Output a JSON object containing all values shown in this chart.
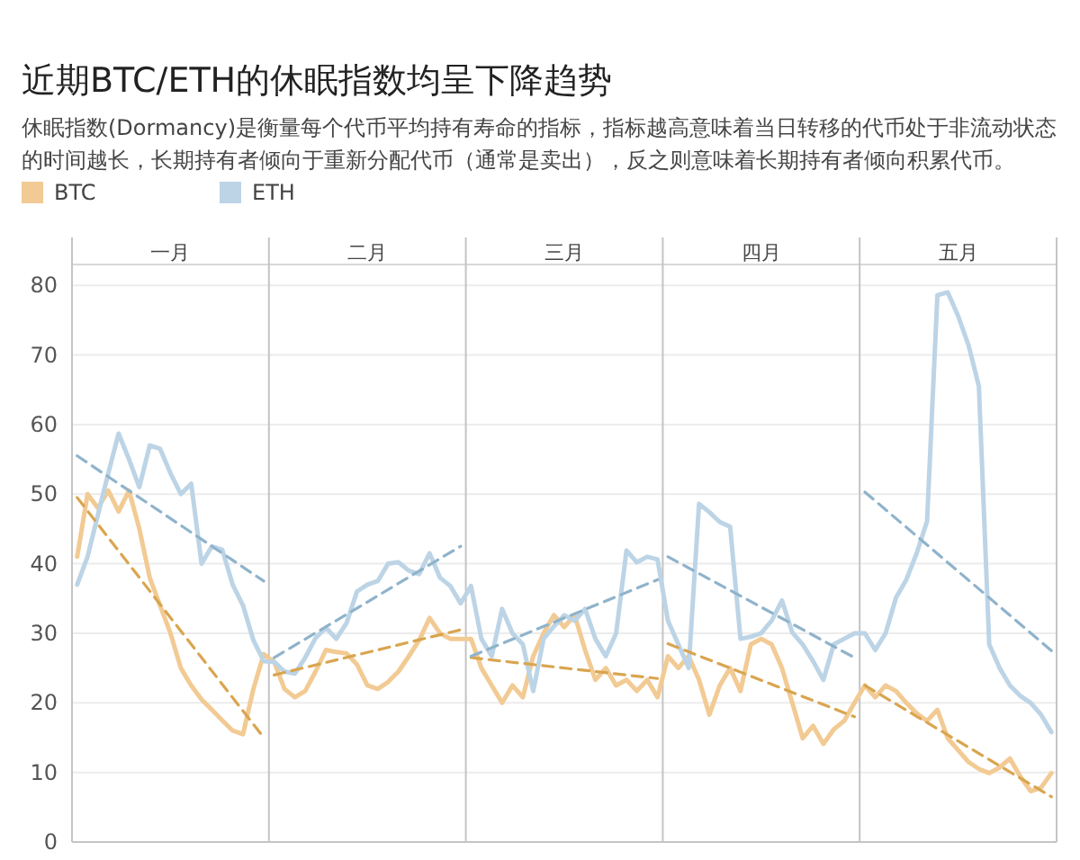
{
  "chart_data": [
    {
      "type": "other",
      "title": "近期BTC/ETH的休眠指数均呈下降趋势",
      "subtitle": "休眠指数(Dormancy)是衡量每个代币平均持有寿命的指标，指标越高意味着当日转移的代币处于非流动状态的时间越长，长期持有者倾向于重新分配代币（通常是卖出），反之则意味着长期持有者倾向积累代币。"
    },
    {
      "type": "line",
      "legend": "top left",
      "grid": "y",
      "ylim": [
        0,
        83
      ],
      "yticks": [
        0,
        10,
        20,
        30,
        40,
        50,
        60,
        70,
        80
      ],
      "annotations": [
        "一月",
        "二月",
        "三月",
        "四月",
        "五月"
      ],
      "categories": [
        null,
        null,
        null,
        null,
        null,
        null,
        null,
        null,
        null,
        null,
        null,
        null,
        null,
        null,
        null,
        null,
        null,
        null,
        null,
        null,
        null,
        null,
        null,
        null,
        null,
        null,
        null,
        null,
        null,
        null,
        null,
        null,
        null,
        null,
        null,
        null,
        null,
        null,
        null,
        null,
        null,
        null,
        null,
        null,
        null,
        null,
        null,
        null,
        null,
        null,
        null,
        null,
        null,
        null,
        null,
        null,
        null,
        null,
        null,
        null,
        null,
        null,
        null,
        null,
        null,
        null,
        null,
        null,
        null,
        null,
        null,
        null,
        null,
        null,
        null,
        null,
        null,
        null,
        null,
        null,
        null,
        null,
        null,
        null,
        null,
        null,
        null,
        null,
        null,
        null,
        null,
        null,
        null,
        null,
        null
      ],
      "series": [
        {
          "name": "BTC",
          "color": "#f2ca93",
          "values": [
            41,
            50,
            48,
            50.5,
            47.5,
            50.5,
            45,
            38,
            34,
            30,
            25,
            22.5,
            20.5,
            19,
            17.5,
            16,
            15.5,
            22,
            27,
            25.9,
            22,
            20.8,
            21.7,
            24.5,
            27.6,
            27.3,
            27.1,
            25.5,
            22.5,
            22,
            23,
            24.5,
            26.7,
            29,
            32.2,
            30,
            29.2,
            29.2,
            29.2,
            25,
            22.5,
            20,
            22.5,
            20.8,
            26.7,
            30,
            32.6,
            30.9,
            32.6,
            27.6,
            23.3,
            25,
            22.5,
            23.3,
            21.7,
            23.3,
            20.8,
            26.7,
            25,
            26.7,
            23.3,
            18.3,
            22.5,
            25,
            21.7,
            28.4,
            29.2,
            28.4,
            25,
            20,
            14.9,
            16.7,
            14.1,
            16.2,
            17.4,
            20,
            22.5,
            20.8,
            22.5,
            21.7,
            20,
            18.5,
            17.4,
            19,
            14.9,
            13.2,
            11.5,
            10.5,
            9.9,
            10.7,
            12,
            9.4,
            7.3,
            7.8,
            9.9
          ]
        },
        {
          "name": "ETH",
          "color": "#bcd4e6",
          "values": [
            37,
            41,
            47,
            53,
            58.7,
            55,
            51,
            57,
            56.5,
            53,
            50,
            51.5,
            40,
            42.5,
            42,
            37,
            34,
            29,
            26,
            25.9,
            24.5,
            24.2,
            26.5,
            29.3,
            30.8,
            29.2,
            31.5,
            36,
            37,
            37.5,
            40,
            40.2,
            39,
            38.5,
            41.5,
            38,
            36.8,
            34.3,
            36.8,
            29.2,
            26.7,
            33.5,
            30,
            28.4,
            21.7,
            29.2,
            31,
            32.6,
            31.8,
            33.5,
            29.2,
            26.7,
            30,
            41.9,
            40.2,
            41,
            40.6,
            31.8,
            28.4,
            25,
            48.6,
            47.4,
            46,
            45.3,
            29.2,
            29.5,
            30,
            31.8,
            34.7,
            30.1,
            28.4,
            26,
            23.3,
            28.4,
            29.2,
            30,
            30,
            27.6,
            30,
            35.1,
            37.7,
            41.5,
            46.1,
            78.6,
            79,
            75.6,
            71.4,
            65.5,
            28.4,
            25,
            22.5,
            21,
            20,
            18.3,
            15.8
          ]
        },
        {
          "color": "#d9a54f",
          "line_style": "dashed",
          "values": [
            49.5,
            null,
            null,
            null,
            null,
            null,
            null,
            null,
            null,
            null,
            null,
            null,
            null,
            null,
            null,
            null,
            null,
            null,
            15,
            null,
            null,
            null,
            null,
            null,
            null,
            null,
            null,
            null,
            null,
            null,
            null,
            null,
            null,
            null,
            null,
            null,
            null,
            null,
            null,
            null,
            null,
            null,
            null,
            null,
            null,
            null,
            null,
            null,
            null,
            null,
            null,
            null,
            null,
            null,
            null,
            null,
            null,
            null,
            null,
            null,
            null,
            null,
            null,
            null,
            null,
            null,
            null,
            null,
            null,
            null,
            null,
            null,
            null,
            null,
            null,
            null,
            null,
            null,
            null,
            null,
            null,
            null,
            null,
            null,
            null,
            null,
            null,
            null,
            null,
            null,
            null,
            null,
            null,
            null,
            null
          ]
        },
        {
          "color": "#8fb3cb",
          "line_style": "dashed",
          "values": [
            55.5,
            null,
            null,
            null,
            null,
            null,
            null,
            null,
            null,
            null,
            null,
            null,
            null,
            null,
            null,
            null,
            null,
            null,
            37.5,
            null,
            null,
            null,
            null,
            null,
            null,
            null,
            null,
            null,
            null,
            null,
            null,
            null,
            null,
            null,
            null,
            null,
            null,
            null,
            null,
            null,
            null,
            null,
            null,
            null,
            null,
            null,
            null,
            null,
            null,
            null,
            null,
            null,
            null,
            null,
            null,
            null,
            null,
            null,
            null,
            null,
            null,
            null,
            null,
            null,
            null,
            null,
            null,
            null,
            null,
            null,
            null,
            null,
            null,
            null,
            null,
            null,
            null,
            null,
            null,
            null,
            null,
            null,
            null,
            null,
            null,
            null,
            null,
            null,
            null,
            null,
            null,
            null,
            null,
            null,
            null
          ]
        },
        {
          "color": "#d9a54f",
          "line_style": "dashed",
          "values": [
            null,
            null,
            null,
            null,
            null,
            null,
            null,
            null,
            null,
            null,
            null,
            null,
            null,
            null,
            null,
            null,
            null,
            null,
            null,
            24,
            null,
            null,
            null,
            null,
            null,
            null,
            null,
            null,
            null,
            null,
            null,
            null,
            null,
            null,
            null,
            null,
            null,
            30.5,
            null,
            null,
            null,
            null,
            null,
            null,
            null,
            null,
            null,
            null,
            null,
            null,
            null,
            null,
            null,
            null,
            null,
            null,
            null,
            null,
            null,
            null,
            null,
            null,
            null,
            null,
            null,
            null,
            null,
            null,
            null,
            null,
            null,
            null,
            null,
            null,
            null,
            null,
            null,
            null,
            null,
            null,
            null,
            null,
            null,
            null,
            null,
            null,
            null,
            null,
            null,
            null,
            null,
            null,
            null,
            null,
            null
          ]
        },
        {
          "color": "#8fb3cb",
          "line_style": "dashed",
          "values": [
            null,
            null,
            null,
            null,
            null,
            null,
            null,
            null,
            null,
            null,
            null,
            null,
            null,
            null,
            null,
            null,
            null,
            null,
            null,
            26.5,
            null,
            null,
            null,
            null,
            null,
            null,
            null,
            null,
            null,
            null,
            null,
            null,
            null,
            null,
            null,
            null,
            null,
            42.5,
            null,
            null,
            null,
            null,
            null,
            null,
            null,
            null,
            null,
            null,
            null,
            null,
            null,
            null,
            null,
            null,
            null,
            null,
            null,
            null,
            null,
            null,
            null,
            null,
            null,
            null,
            null,
            null,
            null,
            null,
            null,
            null,
            null,
            null,
            null,
            null,
            null,
            null,
            null,
            null,
            null,
            null,
            null,
            null,
            null,
            null,
            null,
            null,
            null,
            null,
            null,
            null,
            null,
            null,
            null,
            null,
            null
          ]
        },
        {
          "color": "#d9a54f",
          "line_style": "dashed",
          "values": [
            null,
            null,
            null,
            null,
            null,
            null,
            null,
            null,
            null,
            null,
            null,
            null,
            null,
            null,
            null,
            null,
            null,
            null,
            null,
            null,
            null,
            null,
            null,
            null,
            null,
            null,
            null,
            null,
            null,
            null,
            null,
            null,
            null,
            null,
            null,
            null,
            null,
            null,
            26.5,
            null,
            null,
            null,
            null,
            null,
            null,
            null,
            null,
            null,
            null,
            null,
            null,
            null,
            null,
            null,
            null,
            null,
            23.5,
            null,
            null,
            null,
            null,
            null,
            null,
            null,
            null,
            null,
            null,
            null,
            null,
            null,
            null,
            null,
            null,
            null,
            null,
            null,
            null,
            null,
            null,
            null,
            null,
            null,
            null,
            null,
            null,
            null,
            null,
            null,
            null,
            null,
            null,
            null,
            null,
            null,
            null
          ]
        },
        {
          "color": "#8fb3cb",
          "line_style": "dashed",
          "values": [
            null,
            null,
            null,
            null,
            null,
            null,
            null,
            null,
            null,
            null,
            null,
            null,
            null,
            null,
            null,
            null,
            null,
            null,
            null,
            null,
            null,
            null,
            null,
            null,
            null,
            null,
            null,
            null,
            null,
            null,
            null,
            null,
            null,
            null,
            null,
            null,
            null,
            null,
            26.7,
            null,
            null,
            null,
            null,
            null,
            null,
            null,
            null,
            null,
            null,
            null,
            null,
            null,
            null,
            null,
            null,
            null,
            37.7,
            null,
            null,
            null,
            null,
            null,
            null,
            null,
            null,
            null,
            null,
            null,
            null,
            null,
            null,
            null,
            null,
            null,
            null,
            null,
            null,
            null,
            null,
            null,
            null,
            null,
            null,
            null,
            null,
            null,
            null,
            null,
            null,
            null,
            null,
            null,
            null,
            null,
            null
          ]
        },
        {
          "color": "#d9a54f",
          "line_style": "dashed",
          "values": [
            null,
            null,
            null,
            null,
            null,
            null,
            null,
            null,
            null,
            null,
            null,
            null,
            null,
            null,
            null,
            null,
            null,
            null,
            null,
            null,
            null,
            null,
            null,
            null,
            null,
            null,
            null,
            null,
            null,
            null,
            null,
            null,
            null,
            null,
            null,
            null,
            null,
            null,
            null,
            null,
            null,
            null,
            null,
            null,
            null,
            null,
            null,
            null,
            null,
            null,
            null,
            null,
            null,
            null,
            null,
            null,
            null,
            28.5,
            null,
            null,
            null,
            null,
            null,
            null,
            null,
            null,
            null,
            null,
            null,
            null,
            null,
            null,
            null,
            null,
            null,
            18,
            null,
            null,
            null,
            null,
            null,
            null,
            null,
            null,
            null,
            null,
            null,
            null,
            null,
            null,
            null,
            null,
            null,
            null,
            null
          ]
        },
        {
          "color": "#8fb3cb",
          "line_style": "dashed",
          "values": [
            null,
            null,
            null,
            null,
            null,
            null,
            null,
            null,
            null,
            null,
            null,
            null,
            null,
            null,
            null,
            null,
            null,
            null,
            null,
            null,
            null,
            null,
            null,
            null,
            null,
            null,
            null,
            null,
            null,
            null,
            null,
            null,
            null,
            null,
            null,
            null,
            null,
            null,
            null,
            null,
            null,
            null,
            null,
            null,
            null,
            null,
            null,
            null,
            null,
            null,
            null,
            null,
            null,
            null,
            null,
            null,
            null,
            41,
            null,
            null,
            null,
            null,
            null,
            null,
            null,
            null,
            null,
            null,
            null,
            null,
            null,
            null,
            null,
            null,
            null,
            26.5,
            null,
            null,
            null,
            null,
            null,
            null,
            null,
            null,
            null,
            null,
            null,
            null,
            null,
            null,
            null,
            null,
            null,
            null,
            null
          ]
        },
        {
          "color": "#d9a54f",
          "line_style": "dashed",
          "values": [
            null,
            null,
            null,
            null,
            null,
            null,
            null,
            null,
            null,
            null,
            null,
            null,
            null,
            null,
            null,
            null,
            null,
            null,
            null,
            null,
            null,
            null,
            null,
            null,
            null,
            null,
            null,
            null,
            null,
            null,
            null,
            null,
            null,
            null,
            null,
            null,
            null,
            null,
            null,
            null,
            null,
            null,
            null,
            null,
            null,
            null,
            null,
            null,
            null,
            null,
            null,
            null,
            null,
            null,
            null,
            null,
            null,
            null,
            null,
            null,
            null,
            null,
            null,
            null,
            null,
            null,
            null,
            null,
            null,
            null,
            null,
            null,
            null,
            null,
            null,
            null,
            22.5,
            null,
            null,
            null,
            null,
            null,
            null,
            null,
            null,
            null,
            null,
            null,
            null,
            null,
            null,
            null,
            null,
            null,
            6.5
          ]
        },
        {
          "color": "#8fb3cb",
          "line_style": "dashed",
          "values": [
            null,
            null,
            null,
            null,
            null,
            null,
            null,
            null,
            null,
            null,
            null,
            null,
            null,
            null,
            null,
            null,
            null,
            null,
            null,
            null,
            null,
            null,
            null,
            null,
            null,
            null,
            null,
            null,
            null,
            null,
            null,
            null,
            null,
            null,
            null,
            null,
            null,
            null,
            null,
            null,
            null,
            null,
            null,
            null,
            null,
            null,
            null,
            null,
            null,
            null,
            null,
            null,
            null,
            null,
            null,
            null,
            null,
            null,
            null,
            null,
            null,
            null,
            null,
            null,
            null,
            null,
            null,
            null,
            null,
            null,
            null,
            null,
            null,
            null,
            null,
            null,
            50.3,
            null,
            null,
            null,
            null,
            null,
            null,
            null,
            null,
            null,
            null,
            null,
            null,
            null,
            null,
            null,
            null,
            null,
            27.5
          ]
        }
      ]
    }
  ]
}
